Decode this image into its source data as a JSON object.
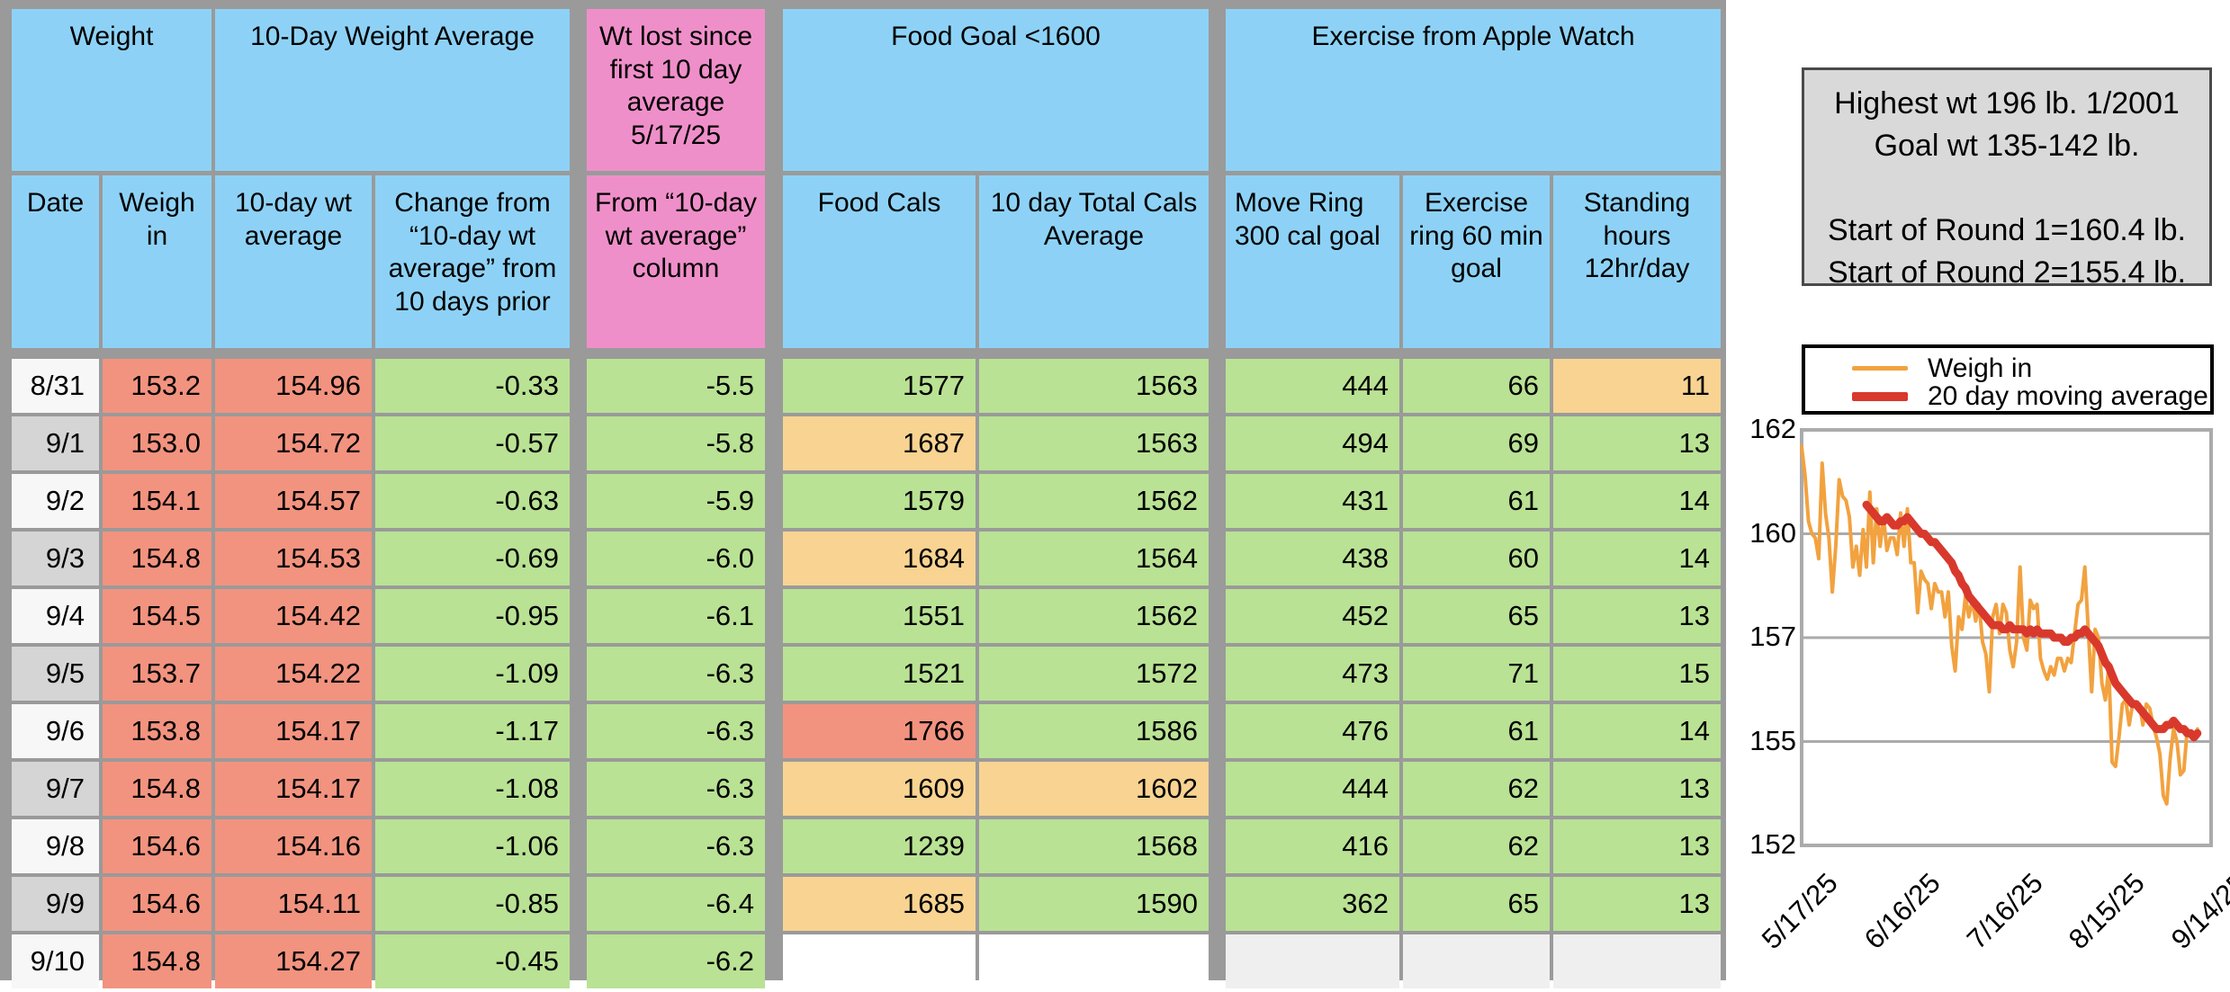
{
  "colors": {
    "sheet_bg": "#9A9A9A",
    "header_blue": "#8DD2F6",
    "header_pink": "#EF8FCA",
    "cell_salmon": "#F2937F",
    "cell_green": "#B9E294",
    "cell_orange": "#F8D392",
    "cell_empty_gray": "#EFEFEF",
    "date_white": "#F7F7F7",
    "date_gray": "#D5D5D5",
    "chart_orange": "#F2A23F",
    "chart_red": "#D8392C",
    "chart_grid": "#ABABAB"
  },
  "table": {
    "group_headers": [
      {
        "label": "Weight"
      },
      {
        "label": "10-Day Weight Average"
      },
      {
        "label": "Wt lost since first 10 day average 5/17/25"
      },
      {
        "label": "Food Goal <1600"
      },
      {
        "label": "Exercise from Apple Watch"
      }
    ],
    "columns": [
      {
        "label": "Date"
      },
      {
        "label": "Weigh in"
      },
      {
        "label": "10-day wt average"
      },
      {
        "label": "Change from “10-day wt average” from 10 days prior"
      },
      {
        "label": "From “10-day wt average” column"
      },
      {
        "label": "Food Cals"
      },
      {
        "label": "10 day Total Cals Average"
      },
      {
        "label": "Move Ring 300 cal goal"
      },
      {
        "label": "Exercise ring 60 min goal"
      },
      {
        "label": "Standing hours 12hr/day"
      }
    ],
    "rows": [
      {
        "date": "8/31",
        "date_bg": "dw",
        "cells": [
          [
            "153.2",
            "s"
          ],
          [
            "154.96",
            "s"
          ],
          [
            "-0.33",
            "g"
          ],
          [
            "-5.5",
            "g"
          ],
          [
            "1577",
            "g"
          ],
          [
            "1563",
            "g"
          ],
          [
            "444",
            "g"
          ],
          [
            "66",
            "g"
          ],
          [
            "11",
            "o"
          ]
        ]
      },
      {
        "date": "9/1",
        "date_bg": "dg",
        "cells": [
          [
            "153.0",
            "s"
          ],
          [
            "154.72",
            "s"
          ],
          [
            "-0.57",
            "g"
          ],
          [
            "-5.8",
            "g"
          ],
          [
            "1687",
            "o"
          ],
          [
            "1563",
            "g"
          ],
          [
            "494",
            "g"
          ],
          [
            "69",
            "g"
          ],
          [
            "13",
            "g"
          ]
        ]
      },
      {
        "date": "9/2",
        "date_bg": "dw",
        "cells": [
          [
            "154.1",
            "s"
          ],
          [
            "154.57",
            "s"
          ],
          [
            "-0.63",
            "g"
          ],
          [
            "-5.9",
            "g"
          ],
          [
            "1579",
            "g"
          ],
          [
            "1562",
            "g"
          ],
          [
            "431",
            "g"
          ],
          [
            "61",
            "g"
          ],
          [
            "14",
            "g"
          ]
        ]
      },
      {
        "date": "9/3",
        "date_bg": "dg",
        "cells": [
          [
            "154.8",
            "s"
          ],
          [
            "154.53",
            "s"
          ],
          [
            "-0.69",
            "g"
          ],
          [
            "-6.0",
            "g"
          ],
          [
            "1684",
            "o"
          ],
          [
            "1564",
            "g"
          ],
          [
            "438",
            "g"
          ],
          [
            "60",
            "g"
          ],
          [
            "14",
            "g"
          ]
        ]
      },
      {
        "date": "9/4",
        "date_bg": "dw",
        "cells": [
          [
            "154.5",
            "s"
          ],
          [
            "154.42",
            "s"
          ],
          [
            "-0.95",
            "g"
          ],
          [
            "-6.1",
            "g"
          ],
          [
            "1551",
            "g"
          ],
          [
            "1562",
            "g"
          ],
          [
            "452",
            "g"
          ],
          [
            "65",
            "g"
          ],
          [
            "13",
            "g"
          ]
        ]
      },
      {
        "date": "9/5",
        "date_bg": "dg",
        "cells": [
          [
            "153.7",
            "s"
          ],
          [
            "154.22",
            "s"
          ],
          [
            "-1.09",
            "g"
          ],
          [
            "-6.3",
            "g"
          ],
          [
            "1521",
            "g"
          ],
          [
            "1572",
            "g"
          ],
          [
            "473",
            "g"
          ],
          [
            "71",
            "g"
          ],
          [
            "15",
            "g"
          ]
        ]
      },
      {
        "date": "9/6",
        "date_bg": "dw",
        "cells": [
          [
            "153.8",
            "s"
          ],
          [
            "154.17",
            "s"
          ],
          [
            "-1.17",
            "g"
          ],
          [
            "-6.3",
            "g"
          ],
          [
            "1766",
            "s"
          ],
          [
            "1586",
            "g"
          ],
          [
            "476",
            "g"
          ],
          [
            "61",
            "g"
          ],
          [
            "14",
            "g"
          ]
        ]
      },
      {
        "date": "9/7",
        "date_bg": "dg",
        "cells": [
          [
            "154.8",
            "s"
          ],
          [
            "154.17",
            "s"
          ],
          [
            "-1.08",
            "g"
          ],
          [
            "-6.3",
            "g"
          ],
          [
            "1609",
            "o"
          ],
          [
            "1602",
            "o"
          ],
          [
            "444",
            "g"
          ],
          [
            "62",
            "g"
          ],
          [
            "13",
            "g"
          ]
        ]
      },
      {
        "date": "9/8",
        "date_bg": "dw",
        "cells": [
          [
            "154.6",
            "s"
          ],
          [
            "154.16",
            "s"
          ],
          [
            "-1.06",
            "g"
          ],
          [
            "-6.3",
            "g"
          ],
          [
            "1239",
            "g"
          ],
          [
            "1568",
            "g"
          ],
          [
            "416",
            "g"
          ],
          [
            "62",
            "g"
          ],
          [
            "13",
            "g"
          ]
        ]
      },
      {
        "date": "9/9",
        "date_bg": "dg",
        "cells": [
          [
            "154.6",
            "s"
          ],
          [
            "154.11",
            "s"
          ],
          [
            "-0.85",
            "g"
          ],
          [
            "-6.4",
            "g"
          ],
          [
            "1685",
            "o"
          ],
          [
            "1590",
            "g"
          ],
          [
            "362",
            "g"
          ],
          [
            "65",
            "g"
          ],
          [
            "13",
            "g"
          ]
        ]
      },
      {
        "date": "9/10",
        "date_bg": "dw",
        "cells": [
          [
            "154.8",
            "s"
          ],
          [
            "154.27",
            "s"
          ],
          [
            "-0.45",
            "g"
          ],
          [
            "-6.2",
            "g"
          ],
          [
            "",
            "w"
          ],
          [
            "",
            "w"
          ],
          [
            "",
            "e"
          ],
          [
            "",
            "e"
          ],
          [
            "",
            "e"
          ]
        ]
      }
    ]
  },
  "info_box": {
    "line1": "Highest wt 196 lb.  1/2001",
    "line2": "Goal wt 135-142 lb.",
    "line3": "",
    "line4": "Start of Round 1=160.4 lb.",
    "line5": "Start of Round 2=155.4 lb."
  },
  "chart_data": {
    "type": "line",
    "title": "",
    "xlabel": "",
    "ylabel": "",
    "ylim": [
      152,
      162
    ],
    "ytick_labels": [
      "162",
      "160",
      "157",
      "155",
      "152"
    ],
    "xtick_labels": [
      "5/17/25",
      "6/16/25",
      "7/16/25",
      "8/15/25",
      "9/14/25"
    ],
    "xtick_days": [
      0,
      30,
      60,
      90,
      120
    ],
    "x_total_days": 120,
    "grid": true,
    "legend_position": "top-left-box",
    "series": [
      {
        "name": "Weigh in",
        "color": "#F2A23F",
        "stroke_width": 4,
        "start_day": 0,
        "values": [
          161.6,
          160.9,
          159.8,
          159.5,
          159.4,
          158.9,
          161.2,
          160.0,
          159.4,
          158.1,
          159.2,
          160.8,
          160.4,
          160.3,
          159.9,
          158.7,
          159.2,
          158.5,
          159.6,
          158.7,
          160.5,
          158.8,
          160.1,
          159.2,
          159.9,
          159.1,
          159.4,
          159.4,
          159.0,
          160.0,
          159.2,
          160.1,
          158.8,
          158.8,
          157.6,
          158.6,
          158.4,
          158.3,
          157.7,
          158.3,
          158.1,
          158.1,
          157.5,
          158.1,
          156.8,
          156.2,
          157.5,
          157.2,
          158.0,
          157.5,
          157.9,
          157.4,
          157.8,
          156.9,
          156.6,
          155.7,
          157.5,
          157.8,
          157.1,
          157.8,
          157.6,
          156.7,
          156.3,
          156.9,
          158.7,
          157.0,
          156.7,
          157.9,
          157.7,
          157.8,
          156.5,
          156.2,
          156.0,
          156.3,
          156.1,
          156.5,
          156.5,
          156.2,
          156.5,
          156.4,
          157.1,
          157.8,
          157.9,
          158.7,
          157.2,
          155.7,
          157.2,
          157.0,
          155.9,
          155.5,
          156.3,
          154.0,
          153.9,
          154.6,
          155.4,
          155.5,
          154.9,
          155.4,
          155.4,
          155.4,
          154.9,
          155.4,
          155.3,
          154.9,
          154.6,
          154.2,
          153.2,
          153.0,
          154.1,
          154.8,
          154.5,
          153.7,
          153.8,
          154.8,
          154.6,
          154.6,
          154.8
        ]
      },
      {
        "name": "20 day moving average",
        "color": "#D8392C",
        "stroke_width": 9,
        "start_day": 19,
        "values": [
          160.2,
          160.1,
          160.0,
          159.9,
          159.8,
          159.8,
          159.9,
          159.8,
          159.7,
          159.7,
          159.8,
          159.8,
          159.9,
          159.8,
          159.7,
          159.6,
          159.5,
          159.5,
          159.4,
          159.3,
          159.3,
          159.2,
          159.1,
          159.0,
          158.9,
          158.8,
          158.6,
          158.5,
          158.3,
          158.2,
          158.0,
          157.9,
          157.8,
          157.7,
          157.6,
          157.5,
          157.4,
          157.3,
          157.3,
          157.3,
          157.2,
          157.2,
          157.3,
          157.2,
          157.2,
          157.2,
          157.2,
          157.1,
          157.2,
          157.1,
          157.2,
          157.1,
          157.1,
          157.1,
          157.1,
          157.0,
          157.0,
          157.0,
          156.9,
          156.9,
          157.0,
          157.0,
          157.1,
          157.1,
          157.2,
          157.1,
          157.0,
          156.9,
          156.8,
          156.6,
          156.4,
          156.3,
          156.1,
          155.9,
          155.8,
          155.7,
          155.6,
          155.5,
          155.4,
          155.4,
          155.3,
          155.2,
          155.1,
          155.0,
          154.9,
          154.8,
          154.8,
          154.8,
          154.9,
          154.9,
          155.0,
          154.9,
          154.8,
          154.8,
          154.7,
          154.7,
          154.6,
          154.7
        ]
      }
    ]
  }
}
